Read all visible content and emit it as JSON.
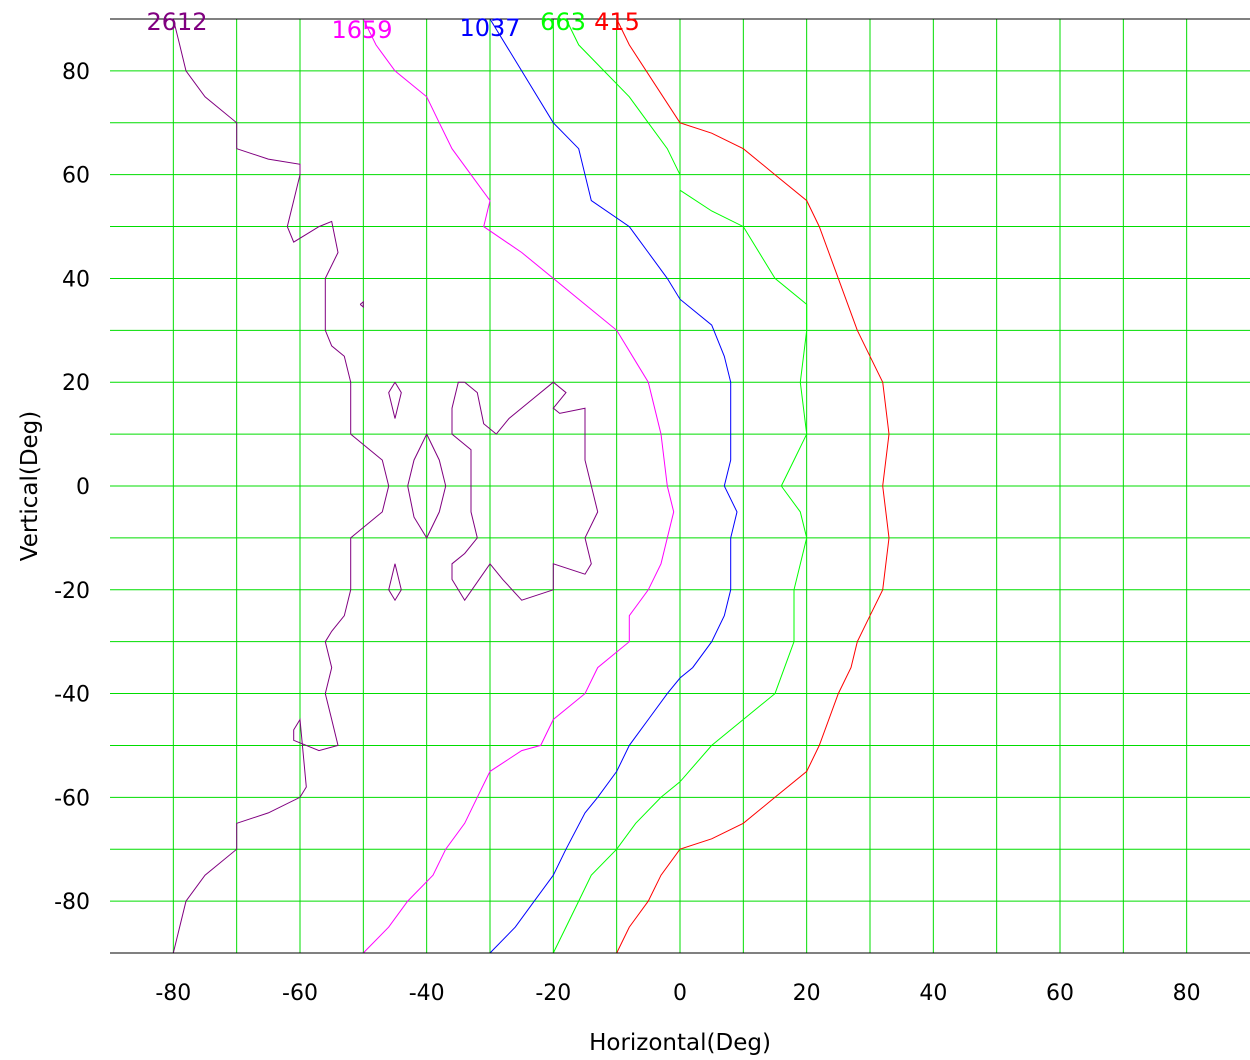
{
  "chart_data": {
    "type": "line",
    "title": "",
    "xlabel": "Horizontal(Deg)",
    "ylabel": "Vertical(Deg)",
    "xlim": [
      -90,
      90
    ],
    "ylim": [
      -90,
      90
    ],
    "grid": true,
    "grid_color": "#00dd00",
    "x_ticks": [
      -80,
      -60,
      -40,
      -20,
      0,
      20,
      40,
      60,
      80
    ],
    "y_ticks": [
      80,
      60,
      40,
      20,
      0,
      -20,
      -40,
      -60,
      -80
    ],
    "x_tick_labels": [
      "-80",
      "-60",
      "-40",
      "-20",
      "0",
      "20",
      "40",
      "60",
      "80"
    ],
    "y_tick_labels": [
      "80",
      "60",
      "40",
      "20",
      "0",
      "-20",
      "-40",
      "-60",
      "-80"
    ],
    "series": [
      {
        "name": "2612",
        "color": "#800080",
        "paths": [
          [
            [
              -80,
              90
            ],
            [
              -79,
              85
            ],
            [
              -78,
              80
            ],
            [
              -75,
              75
            ],
            [
              -70,
              70
            ],
            [
              -70,
              65
            ],
            [
              -65,
              63
            ],
            [
              -60,
              62
            ],
            [
              -60,
              60
            ],
            [
              -61,
              55
            ],
            [
              -62,
              50
            ],
            [
              -61,
              47
            ],
            [
              -57,
              50
            ],
            [
              -55,
              51
            ],
            [
              -54,
              45
            ],
            [
              -56,
              40
            ],
            [
              -56,
              35
            ],
            [
              -56,
              30
            ],
            [
              -55,
              27
            ],
            [
              -53,
              25
            ],
            [
              -52,
              20
            ],
            [
              -52,
              10
            ],
            [
              -50,
              8
            ],
            [
              -47,
              5
            ],
            [
              -46,
              0
            ],
            [
              -47,
              -5
            ],
            [
              -50,
              -8
            ],
            [
              -52,
              -10
            ],
            [
              -52,
              -20
            ],
            [
              -53,
              -25
            ],
            [
              -55,
              -28
            ],
            [
              -56,
              -30
            ],
            [
              -55,
              -35
            ],
            [
              -56,
              -40
            ],
            [
              -55,
              -45
            ],
            [
              -54,
              -50
            ],
            [
              -57,
              -51
            ],
            [
              -61,
              -49
            ],
            [
              -61,
              -47
            ],
            [
              -60,
              -45
            ],
            [
              -59,
              -58
            ],
            [
              -60,
              -60
            ],
            [
              -65,
              -63
            ],
            [
              -70,
              -65
            ],
            [
              -70,
              -70
            ],
            [
              -75,
              -75
            ],
            [
              -78,
              -80
            ],
            [
              -80,
              -90
            ]
          ],
          [
            [
              -45,
              20
            ],
            [
              -44,
              18
            ],
            [
              -45,
              13
            ],
            [
              -46,
              18
            ],
            [
              -45,
              20
            ]
          ],
          [
            [
              -40,
              10
            ],
            [
              -38,
              5
            ],
            [
              -37,
              0
            ],
            [
              -38,
              -5
            ],
            [
              -40,
              -10
            ],
            [
              -42,
              -6
            ],
            [
              -43,
              0
            ],
            [
              -42,
              5
            ],
            [
              -40,
              10
            ]
          ],
          [
            [
              -45,
              -15
            ],
            [
              -44,
              -20
            ],
            [
              -45,
              -22
            ],
            [
              -46,
              -20
            ],
            [
              -45,
              -15
            ]
          ],
          [
            [
              -34,
              20
            ],
            [
              -32,
              18
            ],
            [
              -31,
              12
            ],
            [
              -29,
              10
            ],
            [
              -27,
              13
            ],
            [
              -23,
              17
            ],
            [
              -20,
              20
            ],
            [
              -18,
              18
            ],
            [
              -20,
              15
            ],
            [
              -19,
              14
            ],
            [
              -15,
              15
            ],
            [
              -15,
              5
            ],
            [
              -13,
              -5
            ],
            [
              -15,
              -10
            ],
            [
              -14,
              -15
            ],
            [
              -15,
              -17
            ],
            [
              -20,
              -15
            ],
            [
              -20,
              -20
            ],
            [
              -25,
              -22
            ],
            [
              -28,
              -18
            ],
            [
              -30,
              -15
            ],
            [
              -34,
              -22
            ],
            [
              -36,
              -18
            ],
            [
              -36,
              -15
            ],
            [
              -34,
              -13
            ],
            [
              -32,
              -10
            ],
            [
              -33,
              -5
            ],
            [
              -33,
              0
            ],
            [
              -33,
              5
            ],
            [
              -33,
              7
            ],
            [
              -36,
              10
            ],
            [
              -36,
              15
            ],
            [
              -35,
              20
            ],
            [
              -34,
              20
            ]
          ],
          [
            [
              -50.5,
              35
            ],
            [
              -50,
              34.5
            ],
            [
              -50,
              35.5
            ],
            [
              -50.5,
              35
            ]
          ]
        ]
      },
      {
        "name": "1659",
        "color": "#ff00ff",
        "paths": [
          [
            [
              -50,
              90
            ],
            [
              -48,
              85
            ],
            [
              -45,
              80
            ],
            [
              -40,
              75
            ],
            [
              -38,
              70
            ],
            [
              -36,
              65
            ],
            [
              -33,
              60
            ],
            [
              -30,
              55
            ],
            [
              -31,
              50
            ],
            [
              -25,
              45
            ],
            [
              -20,
              40
            ],
            [
              -15,
              35
            ],
            [
              -10,
              30
            ],
            [
              -5,
              20
            ],
            [
              -3,
              10
            ],
            [
              -2,
              0
            ],
            [
              -1,
              -5
            ],
            [
              -2,
              -10
            ],
            [
              -3,
              -15
            ],
            [
              -5,
              -20
            ],
            [
              -8,
              -25
            ],
            [
              -8,
              -30
            ],
            [
              -10,
              -32
            ],
            [
              -13,
              -35
            ],
            [
              -15,
              -40
            ],
            [
              -20,
              -45
            ],
            [
              -22,
              -50
            ],
            [
              -25,
              -51
            ],
            [
              -30,
              -55
            ],
            [
              -32,
              -60
            ],
            [
              -34,
              -65
            ],
            [
              -37,
              -70
            ],
            [
              -39,
              -75
            ],
            [
              -43,
              -80
            ],
            [
              -46,
              -85
            ],
            [
              -50,
              -90
            ]
          ]
        ]
      },
      {
        "name": "1037",
        "color": "#0000ff",
        "paths": [
          [
            [
              -30,
              90
            ],
            [
              -25,
              80
            ],
            [
              -20,
              70
            ],
            [
              -16,
              65
            ],
            [
              -14,
              55
            ],
            [
              -8,
              50
            ],
            [
              -5,
              45
            ],
            [
              -2,
              40
            ],
            [
              0,
              36
            ],
            [
              5,
              31
            ],
            [
              7,
              25
            ],
            [
              8,
              20
            ],
            [
              8,
              10
            ],
            [
              8,
              5
            ],
            [
              7,
              0
            ],
            [
              9,
              -5
            ],
            [
              8,
              -10
            ],
            [
              8,
              -20
            ],
            [
              7,
              -25
            ],
            [
              5,
              -30
            ],
            [
              2,
              -35
            ],
            [
              0,
              -37
            ],
            [
              -2,
              -40
            ],
            [
              -5,
              -45
            ],
            [
              -8,
              -50
            ],
            [
              -10,
              -55
            ],
            [
              -13,
              -60
            ],
            [
              -15,
              -63
            ],
            [
              -18,
              -70
            ],
            [
              -20,
              -75
            ],
            [
              -23,
              -80
            ],
            [
              -26,
              -85
            ],
            [
              -30,
              -90
            ]
          ]
        ]
      },
      {
        "name": "663",
        "color": "#00ff00",
        "paths": [
          [
            [
              -18,
              90
            ],
            [
              -16,
              85
            ],
            [
              -12,
              80
            ],
            [
              -8,
              75
            ],
            [
              -5,
              70
            ],
            [
              -2,
              65
            ],
            [
              0,
              60
            ],
            [
              0,
              57
            ],
            [
              5,
              53
            ],
            [
              10,
              50
            ],
            [
              15,
              40
            ],
            [
              20,
              35
            ],
            [
              20,
              30
            ],
            [
              19,
              20
            ],
            [
              20,
              10
            ],
            [
              18,
              5
            ],
            [
              16,
              0
            ],
            [
              19,
              -5
            ],
            [
              20,
              -10
            ],
            [
              18,
              -20
            ],
            [
              18,
              -30
            ],
            [
              15,
              -40
            ],
            [
              10,
              -45
            ],
            [
              5,
              -50
            ],
            [
              0,
              -57
            ],
            [
              -3,
              -60
            ],
            [
              -7,
              -65
            ],
            [
              -10,
              -70
            ],
            [
              -14,
              -75
            ],
            [
              -16,
              -80
            ],
            [
              -18,
              -85
            ],
            [
              -20,
              -90
            ]
          ]
        ]
      },
      {
        "name": "415",
        "color": "#ff0000",
        "paths": [
          [
            [
              -10,
              90
            ],
            [
              -8,
              85
            ],
            [
              0,
              70
            ],
            [
              5,
              68
            ],
            [
              10,
              65
            ],
            [
              15,
              60
            ],
            [
              20,
              55
            ],
            [
              22,
              50
            ],
            [
              25,
              40
            ],
            [
              28,
              30
            ],
            [
              30,
              25
            ],
            [
              32,
              20
            ],
            [
              33,
              10
            ],
            [
              32,
              0
            ],
            [
              33,
              -10
            ],
            [
              32,
              -20
            ],
            [
              30,
              -25
            ],
            [
              28,
              -30
            ],
            [
              27,
              -35
            ],
            [
              25,
              -40
            ],
            [
              22,
              -50
            ],
            [
              20,
              -55
            ],
            [
              15,
              -60
            ],
            [
              10,
              -65
            ],
            [
              5,
              -68
            ],
            [
              0,
              -70
            ],
            [
              -3,
              -75
            ],
            [
              -5,
              -80
            ],
            [
              -8,
              -85
            ],
            [
              -10,
              -90
            ]
          ]
        ]
      }
    ]
  }
}
